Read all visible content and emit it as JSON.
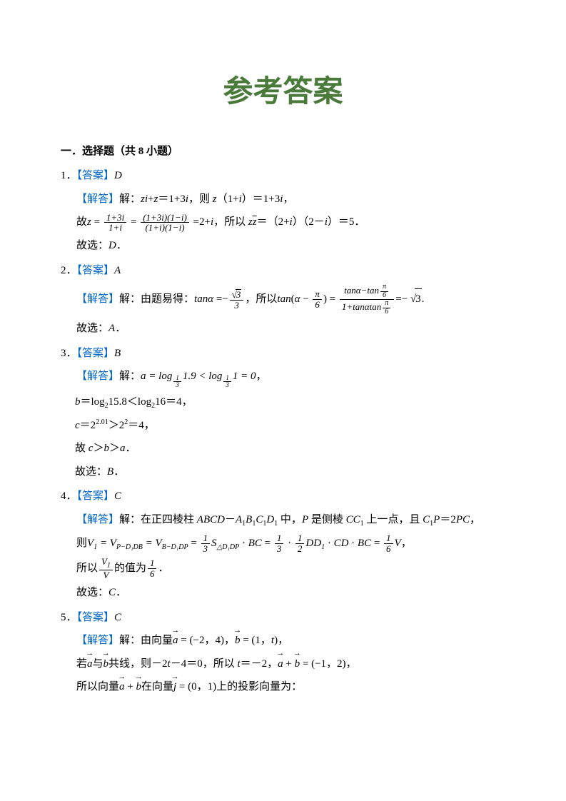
{
  "colors": {
    "title": "#4a7a3a",
    "marker": "#0066cc",
    "text": "#000000",
    "bg": "#ffffff"
  },
  "typography": {
    "title_fontsize": 42,
    "body_fontsize": 15,
    "title_fontfamily": "KaiTi",
    "body_fontfamily": "SimSun / Times New Roman"
  },
  "title": "参考答案",
  "section_heading": "一．选择题（共 8 小题）",
  "markers": {
    "answer": "【答案】",
    "explain": "【解答】"
  },
  "questions": [
    {
      "num": "1．",
      "answer": "D",
      "lines": [
        "解：zi+z＝1+3i，则 z（1+i）＝1+3i，",
        "故z = \\frac{1+3i}{1+i} = \\frac{(1+3i)(1−i)}{(1+i)(1−i)} =2+i，所以 z\\bar{z}＝（2+i）（2－i）＝5．",
        "故选：D．"
      ]
    },
    {
      "num": "2．",
      "answer": "A",
      "lines": [
        "解：由题易得：tanα =− \\frac{√3}{3}，所以tan(α − \\frac{π}{6}) = \\frac{tanα−tan\\frac{π}{6}}{1+tanαtan\\frac{π}{6}} =− √3.",
        "故选：A．"
      ]
    },
    {
      "num": "3．",
      "answer": "B",
      "lines": [
        "解：a = log_{\\frac{1}{3}}1.9 < log_{\\frac{1}{3}}1 = 0，",
        "b＝log₂15.8＜log₂16＝4，",
        "c＝2^{2.01}＞2²＝4，",
        "故 c＞b＞a．",
        "故选：B．"
      ]
    },
    {
      "num": "4．",
      "answer": "C",
      "lines": [
        "解：在正四棱柱 ABCD－A₁B₁C₁D₁ 中，P 是侧棱 CC₁ 上一点，且 C₁P＝2PC，",
        "则V₁ = V_{P−D₁DB} = V_{B−D₁DP} = \\frac{1}{3}S_{△D₁DP} · BC = \\frac{1}{3} · \\frac{1}{2}DD₁ · CD · BC = \\frac{1}{6}V，",
        "所以\\frac{V₁}{V}的值为\\frac{1}{6}．",
        "故选：C．"
      ]
    },
    {
      "num": "5．",
      "answer": "C",
      "lines": [
        "解：由向量\\vec{a} = (−2，4)，\\vec{b} = (1，t)，",
        "若\\vec{a}与\\vec{b}共线，则－2t－4＝0，所以 t＝－2，\\vec{a}+\\vec{b} = (−1，2)，",
        "所以向量\\vec{a}+\\vec{b}在向量\\vec{j} = (0，1)上的投影向量为："
      ]
    }
  ]
}
